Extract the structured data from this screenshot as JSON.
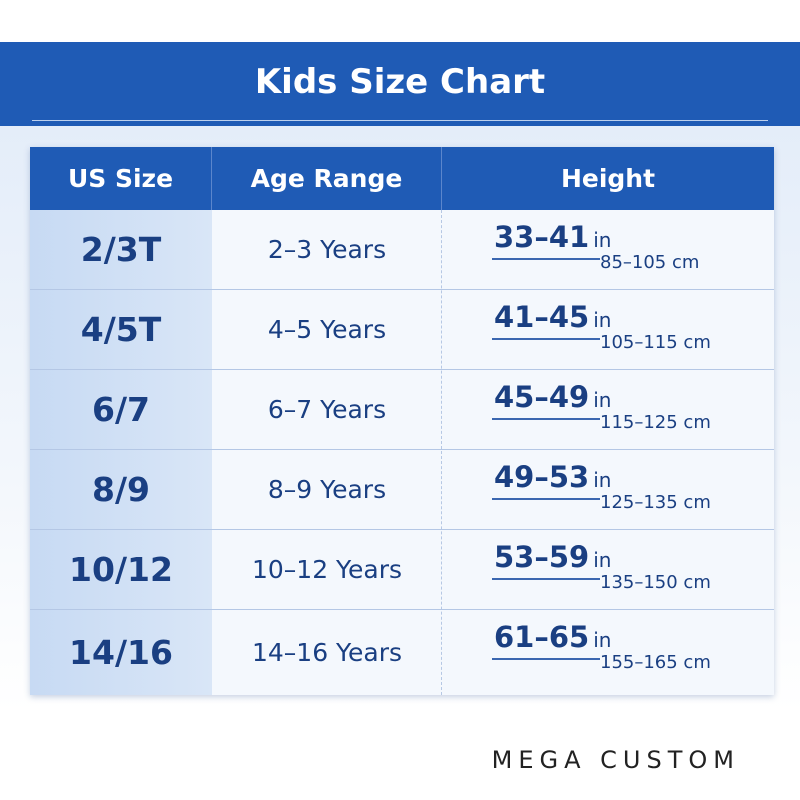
{
  "title": "Kids Size Chart",
  "table": {
    "headers": [
      "US Size",
      "Age Range",
      "Height"
    ],
    "rows": [
      {
        "size": "2/3T",
        "age": "2–3 Years",
        "height_in": "33–41",
        "in_unit": "in",
        "height_cm": "85–105 cm"
      },
      {
        "size": "4/5T",
        "age": "4–5 Years",
        "height_in": "41–45",
        "in_unit": "in",
        "height_cm": "105–115 cm"
      },
      {
        "size": "6/7",
        "age": "6–7 Years",
        "height_in": "45–49",
        "in_unit": "in",
        "height_cm": "115–125 cm"
      },
      {
        "size": "8/9",
        "age": "8–9 Years",
        "height_in": "49–53",
        "in_unit": "in",
        "height_cm": "125–135 cm"
      },
      {
        "size": "10/12",
        "age": "10–12 Years",
        "height_in": "53–59",
        "in_unit": "in",
        "height_cm": "135–150 cm"
      },
      {
        "size": "14/16",
        "age": "14–16 Years",
        "height_in": "61–65",
        "in_unit": "in",
        "height_cm": "155–165 cm"
      }
    ]
  },
  "brand": "MEGA CUSTOM",
  "colors": {
    "header_blue": "#1f5bb5",
    "text_navy": "#1a3f82",
    "size_column": "#c7daf3"
  }
}
